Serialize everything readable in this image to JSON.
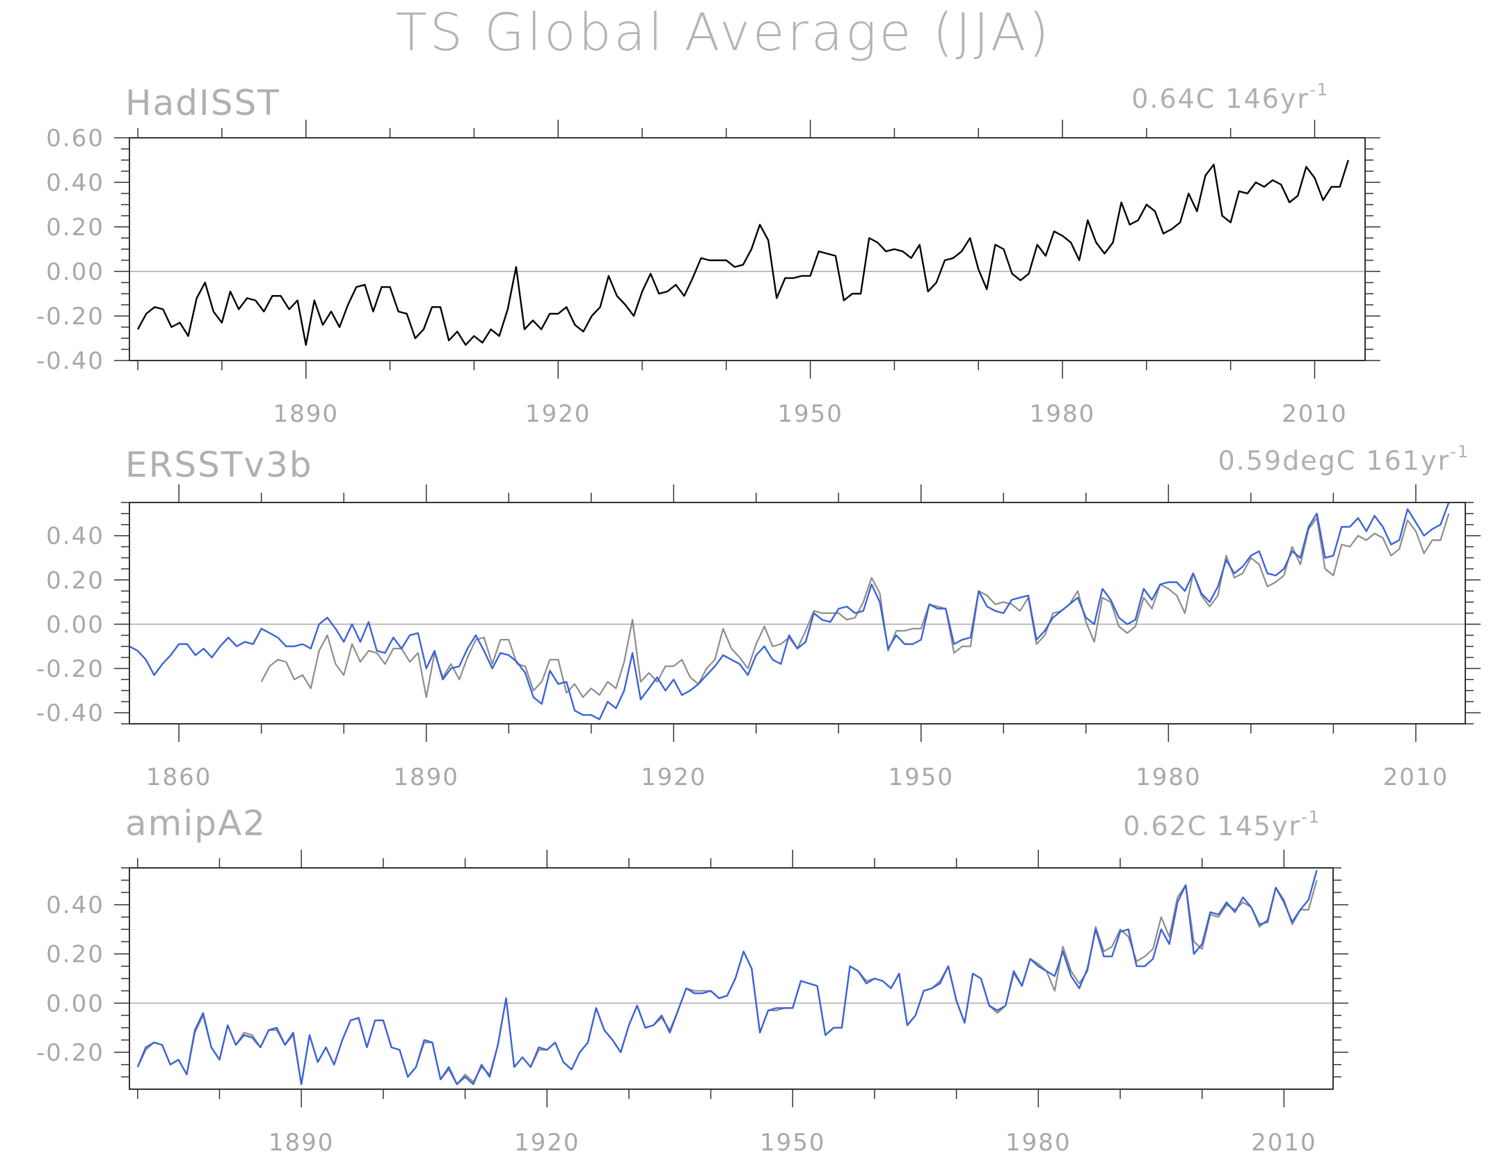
{
  "figure": {
    "title": "TS Global Average (JJA)"
  },
  "colors": {
    "hadisst": "#000000",
    "obs_gray": "#8c8c8c",
    "model_blue": "#3b63d8",
    "zero_line": "#aaaaaa",
    "frame": "#333333",
    "text": "#aaaaaa"
  },
  "chart_data": [
    {
      "type": "line",
      "panel": "HadISST",
      "title": "HadISST",
      "trend_label": "0.64C 146yr",
      "trend_exp": "-1",
      "xlim": [
        1869,
        2016
      ],
      "ylim": [
        -0.4,
        0.6
      ],
      "x_ticks": [
        1890,
        1920,
        1950,
        1980,
        2010
      ],
      "y_ticks": [
        "0.60",
        "0.40",
        "0.20",
        "0.00",
        "-0.20",
        "-0.40"
      ],
      "y_tick_values": [
        0.6,
        0.4,
        0.2,
        0.0,
        -0.2,
        -0.4
      ],
      "x_start": 1870,
      "series": [
        {
          "color_key": "hadisst",
          "values": [
            -0.26,
            -0.19,
            -0.16,
            -0.17,
            -0.25,
            -0.23,
            -0.29,
            -0.12,
            -0.05,
            -0.18,
            -0.23,
            -0.09,
            -0.17,
            -0.12,
            -0.13,
            -0.18,
            -0.11,
            -0.11,
            -0.17,
            -0.13,
            -0.33,
            -0.13,
            -0.24,
            -0.18,
            -0.25,
            -0.15,
            -0.07,
            -0.06,
            -0.18,
            -0.07,
            -0.07,
            -0.18,
            -0.19,
            -0.3,
            -0.26,
            -0.16,
            -0.16,
            -0.31,
            -0.27,
            -0.33,
            -0.29,
            -0.32,
            -0.26,
            -0.29,
            -0.17,
            0.02,
            -0.26,
            -0.22,
            -0.26,
            -0.19,
            -0.19,
            -0.16,
            -0.24,
            -0.27,
            -0.2,
            -0.16,
            -0.02,
            -0.11,
            -0.15,
            -0.2,
            -0.09,
            -0.01,
            -0.1,
            -0.09,
            -0.06,
            -0.11,
            -0.03,
            0.06,
            0.05,
            0.05,
            0.05,
            0.02,
            0.03,
            0.1,
            0.21,
            0.14,
            -0.12,
            -0.03,
            -0.03,
            -0.02,
            -0.02,
            0.09,
            0.08,
            0.07,
            -0.13,
            -0.1,
            -0.1,
            0.15,
            0.13,
            0.09,
            0.1,
            0.09,
            0.06,
            0.12,
            -0.09,
            -0.05,
            0.05,
            0.06,
            0.09,
            0.15,
            0.01,
            -0.08,
            0.12,
            0.1,
            -0.01,
            -0.04,
            -0.01,
            0.12,
            0.07,
            0.18,
            0.16,
            0.13,
            0.05,
            0.23,
            0.13,
            0.08,
            0.13,
            0.31,
            0.21,
            0.23,
            0.3,
            0.27,
            0.17,
            0.19,
            0.22,
            0.35,
            0.27,
            0.43,
            0.48,
            0.25,
            0.22,
            0.36,
            0.35,
            0.4,
            0.38,
            0.41,
            0.39,
            0.31,
            0.34,
            0.47,
            0.42,
            0.32,
            0.38,
            0.38,
            0.5
          ]
        }
      ]
    },
    {
      "type": "line",
      "panel": "ERSSTv3b",
      "title": "ERSSTv3b",
      "trend_label": "0.59degC 161yr",
      "trend_exp": "-1",
      "xlim": [
        1854,
        2016
      ],
      "ylim": [
        -0.45,
        0.55
      ],
      "x_ticks": [
        1860,
        1890,
        1920,
        1950,
        1980,
        2010
      ],
      "y_ticks": [
        "0.40",
        "0.20",
        "0.00",
        "-0.20",
        "-0.40"
      ],
      "y_tick_values": [
        0.4,
        0.2,
        0.0,
        -0.2,
        -0.4
      ],
      "series": [
        {
          "color_key": "obs_gray",
          "x_start": 1870,
          "values": [
            -0.26,
            -0.19,
            -0.16,
            -0.17,
            -0.25,
            -0.23,
            -0.29,
            -0.12,
            -0.05,
            -0.18,
            -0.23,
            -0.09,
            -0.17,
            -0.12,
            -0.13,
            -0.18,
            -0.11,
            -0.11,
            -0.17,
            -0.13,
            -0.33,
            -0.13,
            -0.24,
            -0.18,
            -0.25,
            -0.15,
            -0.07,
            -0.06,
            -0.18,
            -0.07,
            -0.07,
            -0.18,
            -0.19,
            -0.3,
            -0.26,
            -0.16,
            -0.16,
            -0.31,
            -0.27,
            -0.33,
            -0.29,
            -0.32,
            -0.26,
            -0.29,
            -0.17,
            0.02,
            -0.26,
            -0.22,
            -0.26,
            -0.19,
            -0.19,
            -0.16,
            -0.24,
            -0.27,
            -0.2,
            -0.16,
            -0.02,
            -0.11,
            -0.15,
            -0.2,
            -0.09,
            -0.01,
            -0.1,
            -0.09,
            -0.06,
            -0.11,
            -0.03,
            0.06,
            0.05,
            0.05,
            0.05,
            0.02,
            0.03,
            0.1,
            0.21,
            0.14,
            -0.12,
            -0.03,
            -0.03,
            -0.02,
            -0.02,
            0.09,
            0.08,
            0.07,
            -0.13,
            -0.1,
            -0.1,
            0.15,
            0.13,
            0.09,
            0.1,
            0.09,
            0.06,
            0.12,
            -0.09,
            -0.05,
            0.05,
            0.06,
            0.09,
            0.15,
            0.01,
            -0.08,
            0.12,
            0.1,
            -0.01,
            -0.04,
            -0.01,
            0.12,
            0.07,
            0.18,
            0.16,
            0.13,
            0.05,
            0.23,
            0.13,
            0.08,
            0.13,
            0.31,
            0.21,
            0.23,
            0.3,
            0.27,
            0.17,
            0.19,
            0.22,
            0.35,
            0.27,
            0.43,
            0.48,
            0.25,
            0.22,
            0.36,
            0.35,
            0.4,
            0.38,
            0.41,
            0.39,
            0.31,
            0.34,
            0.47,
            0.42,
            0.32,
            0.38,
            0.38,
            0.5
          ]
        },
        {
          "color_key": "model_blue",
          "x_start": 1854,
          "values": [
            -0.1,
            -0.12,
            -0.16,
            -0.23,
            -0.18,
            -0.14,
            -0.09,
            -0.09,
            -0.14,
            -0.11,
            -0.15,
            -0.1,
            -0.06,
            -0.1,
            -0.08,
            -0.09,
            -0.02,
            -0.04,
            -0.06,
            -0.1,
            -0.1,
            -0.09,
            -0.11,
            0.0,
            0.03,
            -0.02,
            -0.08,
            0.0,
            -0.08,
            0.01,
            -0.12,
            -0.13,
            -0.06,
            -0.11,
            -0.05,
            -0.04,
            -0.2,
            -0.12,
            -0.25,
            -0.2,
            -0.19,
            -0.11,
            -0.05,
            -0.12,
            -0.2,
            -0.13,
            -0.14,
            -0.17,
            -0.22,
            -0.33,
            -0.36,
            -0.21,
            -0.27,
            -0.26,
            -0.39,
            -0.41,
            -0.41,
            -0.43,
            -0.35,
            -0.38,
            -0.3,
            -0.13,
            -0.34,
            -0.29,
            -0.24,
            -0.3,
            -0.25,
            -0.32,
            -0.3,
            -0.27,
            -0.23,
            -0.19,
            -0.14,
            -0.16,
            -0.18,
            -0.23,
            -0.14,
            -0.1,
            -0.16,
            -0.18,
            -0.05,
            -0.11,
            -0.08,
            0.05,
            0.02,
            0.01,
            0.07,
            0.08,
            0.05,
            0.06,
            0.18,
            0.1,
            -0.11,
            -0.05,
            -0.09,
            -0.09,
            -0.07,
            0.09,
            0.07,
            0.07,
            -0.09,
            -0.07,
            -0.06,
            0.15,
            0.08,
            0.06,
            0.05,
            0.11,
            0.12,
            0.13,
            -0.07,
            -0.03,
            0.03,
            0.06,
            0.09,
            0.12,
            0.03,
            0.0,
            0.16,
            0.11,
            0.03,
            0.0,
            0.02,
            0.16,
            0.11,
            0.18,
            0.19,
            0.19,
            0.15,
            0.23,
            0.14,
            0.1,
            0.17,
            0.29,
            0.23,
            0.26,
            0.31,
            0.33,
            0.23,
            0.22,
            0.25,
            0.33,
            0.3,
            0.44,
            0.5,
            0.3,
            0.31,
            0.44,
            0.44,
            0.48,
            0.42,
            0.49,
            0.44,
            0.36,
            0.38,
            0.52,
            0.46,
            0.4,
            0.43,
            0.45,
            0.55
          ]
        }
      ]
    },
    {
      "type": "line",
      "panel": "amipA2",
      "title": "amipA2",
      "trend_label": "0.62C 145yr",
      "trend_exp": "-1",
      "xlim": [
        1869,
        2016
      ],
      "ylim": [
        -0.35,
        0.55
      ],
      "x_ticks": [
        1890,
        1920,
        1950,
        1980,
        2010
      ],
      "y_ticks": [
        "0.40",
        "0.20",
        "0.00",
        "-0.20"
      ],
      "y_tick_values": [
        0.4,
        0.2,
        0.0,
        -0.2
      ],
      "series": [
        {
          "color_key": "obs_gray",
          "x_start": 1870,
          "values": [
            -0.26,
            -0.19,
            -0.16,
            -0.17,
            -0.25,
            -0.23,
            -0.29,
            -0.12,
            -0.05,
            -0.18,
            -0.23,
            -0.09,
            -0.17,
            -0.12,
            -0.13,
            -0.18,
            -0.11,
            -0.11,
            -0.17,
            -0.13,
            -0.33,
            -0.13,
            -0.24,
            -0.18,
            -0.25,
            -0.15,
            -0.07,
            -0.06,
            -0.18,
            -0.07,
            -0.07,
            -0.18,
            -0.19,
            -0.3,
            -0.26,
            -0.16,
            -0.16,
            -0.31,
            -0.27,
            -0.33,
            -0.29,
            -0.32,
            -0.26,
            -0.29,
            -0.17,
            0.02,
            -0.26,
            -0.22,
            -0.26,
            -0.19,
            -0.19,
            -0.16,
            -0.24,
            -0.27,
            -0.2,
            -0.16,
            -0.02,
            -0.11,
            -0.15,
            -0.2,
            -0.09,
            -0.01,
            -0.1,
            -0.09,
            -0.06,
            -0.11,
            -0.03,
            0.06,
            0.05,
            0.05,
            0.05,
            0.02,
            0.03,
            0.1,
            0.21,
            0.14,
            -0.12,
            -0.03,
            -0.03,
            -0.02,
            -0.02,
            0.09,
            0.08,
            0.07,
            -0.13,
            -0.1,
            -0.1,
            0.15,
            0.13,
            0.09,
            0.1,
            0.09,
            0.06,
            0.12,
            -0.09,
            -0.05,
            0.05,
            0.06,
            0.09,
            0.15,
            0.01,
            -0.08,
            0.12,
            0.1,
            -0.01,
            -0.04,
            -0.01,
            0.12,
            0.07,
            0.18,
            0.16,
            0.13,
            0.05,
            0.23,
            0.13,
            0.08,
            0.13,
            0.31,
            0.21,
            0.23,
            0.3,
            0.27,
            0.17,
            0.19,
            0.22,
            0.35,
            0.27,
            0.43,
            0.48,
            0.25,
            0.22,
            0.36,
            0.35,
            0.4,
            0.38,
            0.41,
            0.39,
            0.31,
            0.34,
            0.47,
            0.42,
            0.32,
            0.38,
            0.38,
            0.5
          ]
        },
        {
          "color_key": "model_blue",
          "x_start": 1870,
          "values": [
            -0.26,
            -0.18,
            -0.16,
            -0.17,
            -0.25,
            -0.23,
            -0.29,
            -0.11,
            -0.04,
            -0.18,
            -0.23,
            -0.09,
            -0.17,
            -0.13,
            -0.14,
            -0.18,
            -0.11,
            -0.1,
            -0.17,
            -0.12,
            -0.33,
            -0.13,
            -0.24,
            -0.18,
            -0.25,
            -0.15,
            -0.07,
            -0.06,
            -0.18,
            -0.07,
            -0.07,
            -0.18,
            -0.19,
            -0.3,
            -0.26,
            -0.15,
            -0.16,
            -0.31,
            -0.26,
            -0.33,
            -0.3,
            -0.33,
            -0.25,
            -0.3,
            -0.17,
            0.02,
            -0.26,
            -0.22,
            -0.26,
            -0.18,
            -0.19,
            -0.16,
            -0.24,
            -0.27,
            -0.2,
            -0.16,
            -0.02,
            -0.11,
            -0.15,
            -0.2,
            -0.09,
            -0.01,
            -0.1,
            -0.09,
            -0.05,
            -0.12,
            -0.03,
            0.06,
            0.04,
            0.04,
            0.05,
            0.02,
            0.03,
            0.1,
            0.21,
            0.14,
            -0.12,
            -0.03,
            -0.02,
            -0.02,
            -0.02,
            0.09,
            0.08,
            0.07,
            -0.13,
            -0.1,
            -0.1,
            0.15,
            0.13,
            0.08,
            0.1,
            0.09,
            0.06,
            0.12,
            -0.09,
            -0.05,
            0.05,
            0.06,
            0.08,
            0.15,
            0.01,
            -0.08,
            0.12,
            0.1,
            -0.01,
            -0.03,
            -0.01,
            0.13,
            0.07,
            0.18,
            0.15,
            0.13,
            0.11,
            0.21,
            0.11,
            0.06,
            0.14,
            0.3,
            0.19,
            0.19,
            0.29,
            0.3,
            0.15,
            0.15,
            0.18,
            0.3,
            0.24,
            0.41,
            0.48,
            0.2,
            0.24,
            0.37,
            0.36,
            0.41,
            0.37,
            0.43,
            0.39,
            0.32,
            0.33,
            0.47,
            0.41,
            0.33,
            0.38,
            0.42,
            0.54
          ]
        }
      ]
    }
  ]
}
